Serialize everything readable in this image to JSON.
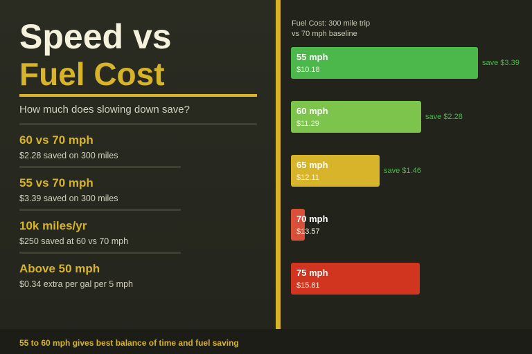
{
  "title": {
    "line1": "Speed vs",
    "line2": "Fuel Cost"
  },
  "subtitle": "How much does slowing down save?",
  "stats": [
    {
      "heading": "60 vs 70 mph",
      "detail": "$2.28 saved on 300 miles"
    },
    {
      "heading": "55 vs 70 mph",
      "detail": "$3.39 saved on 300 miles"
    },
    {
      "heading": "10k miles/yr",
      "detail": "$250 saved at 60 vs 70 mph"
    },
    {
      "heading": "Above 50 mph",
      "detail": "$0.34 extra per gal per 5 mph"
    }
  ],
  "footer": "55 to 60 mph gives best balance of time and fuel saving",
  "colors": {
    "accent": "#d8b42a",
    "bar_55": "#4cb84c",
    "bar_60": "#7cc44c",
    "bar_65": "#d8b42a",
    "bar_70": "#d9503a",
    "bar_75": "#d1351f",
    "save_text": "#4cb84c"
  },
  "chart_data": {
    "type": "bar",
    "orientation": "horizontal",
    "title": [
      "Fuel Cost: 300 mile trip",
      "vs 70 mph baseline"
    ],
    "categories": [
      "55 mph",
      "60 mph",
      "65 mph",
      "70 mph",
      "75 mph"
    ],
    "values": [
      10.18,
      11.29,
      12.11,
      13.57,
      15.81
    ],
    "value_labels": [
      "$10.18",
      "$11.29",
      "$12.11",
      "$13.57",
      "$15.81"
    ],
    "savings_labels": [
      "save $3.39",
      "save $2.28",
      "save $1.46",
      "",
      ""
    ],
    "xlim": [
      13.2,
      15.9
    ]
  }
}
